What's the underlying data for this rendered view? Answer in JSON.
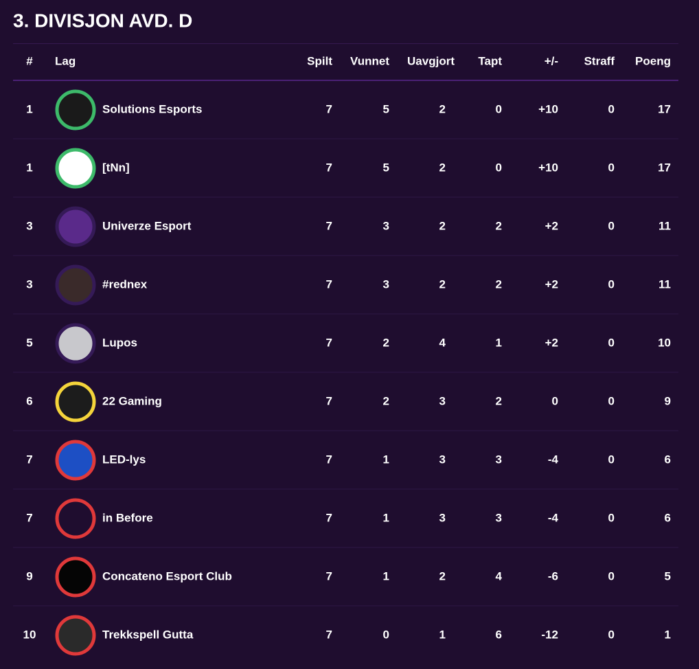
{
  "title": "3. DIVISJON AVD. D",
  "table": {
    "columns": [
      "#",
      "Lag",
      "Spilt",
      "Vunnet",
      "Uavgjort",
      "Tapt",
      "+/-",
      "Straff",
      "Poeng"
    ],
    "rows": [
      {
        "cells": [
          1,
          "Solutions Esports",
          7,
          5,
          2,
          0,
          "+10",
          0,
          17
        ],
        "ring": "#3dba6a",
        "logo_color": "#1a1a1a"
      },
      {
        "cells": [
          1,
          "[tNn]",
          7,
          5,
          2,
          0,
          "+10",
          0,
          17
        ],
        "ring": "#3dba6a",
        "logo_color": "#ffffff"
      },
      {
        "cells": [
          3,
          "Univerze Esport",
          7,
          3,
          2,
          2,
          "+2",
          0,
          11
        ],
        "ring": "#351a57",
        "logo_color": "#5a2a8a"
      },
      {
        "cells": [
          3,
          "#rednex",
          7,
          3,
          2,
          2,
          "+2",
          0,
          11
        ],
        "ring": "#351a57",
        "logo_color": "#3a2a2a"
      },
      {
        "cells": [
          5,
          "Lupos",
          7,
          2,
          4,
          1,
          "+2",
          0,
          10
        ],
        "ring": "#351a57",
        "logo_color": "#c8c8cc"
      },
      {
        "cells": [
          6,
          "22 Gaming",
          7,
          2,
          3,
          2,
          0,
          0,
          9
        ],
        "ring": "#f5d43b",
        "logo_color": "#1c1c1c"
      },
      {
        "cells": [
          7,
          "LED-lys",
          7,
          1,
          3,
          3,
          -4,
          0,
          6
        ],
        "ring": "#e0393a",
        "logo_color": "#1d4fc4"
      },
      {
        "cells": [
          7,
          "in Before",
          7,
          1,
          3,
          3,
          -4,
          0,
          6
        ],
        "ring": "#e0393a",
        "logo_color": "#1f0d2f"
      },
      {
        "cells": [
          9,
          "Concateno Esport Club",
          7,
          1,
          2,
          4,
          -6,
          0,
          5
        ],
        "ring": "#e0393a",
        "logo_color": "#050505"
      },
      {
        "cells": [
          10,
          "Trekkspell Gutta",
          7,
          0,
          1,
          6,
          -12,
          0,
          1
        ],
        "ring": "#e0393a",
        "logo_color": "#2a2a2a"
      }
    ]
  }
}
